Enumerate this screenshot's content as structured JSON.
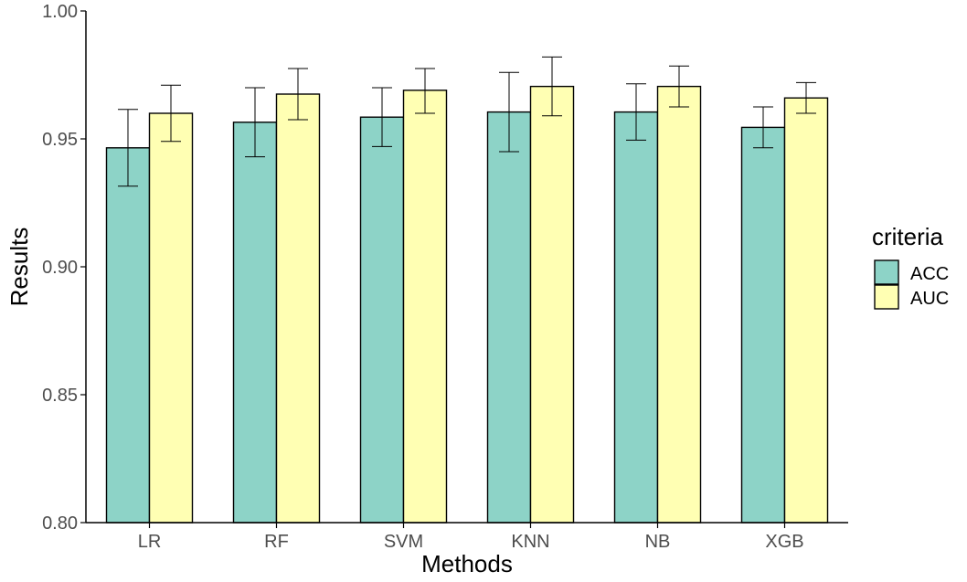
{
  "chart_data": {
    "type": "bar",
    "xlabel": "Methods",
    "ylabel": "Results",
    "ylim": [
      0.8,
      1.0
    ],
    "yticks": [
      "0.80",
      "0.85",
      "0.90",
      "0.95",
      "1.00"
    ],
    "categories": [
      "LR",
      "RF",
      "SVM",
      "KNN",
      "NB",
      "XGB"
    ],
    "legend": {
      "title": "criteria",
      "placement": "right"
    },
    "grid": false,
    "series": [
      {
        "name": "ACC",
        "color": "#8dd3c7",
        "values": [
          0.9465,
          0.9565,
          0.9585,
          0.9605,
          0.9605,
          0.9545
        ],
        "err_low": [
          0.9315,
          0.943,
          0.947,
          0.945,
          0.9495,
          0.9465
        ],
        "err_high": [
          0.9615,
          0.97,
          0.97,
          0.976,
          0.9715,
          0.9625
        ]
      },
      {
        "name": "AUC",
        "color": "#ffffb3",
        "values": [
          0.96,
          0.9675,
          0.969,
          0.9705,
          0.9705,
          0.966
        ],
        "err_low": [
          0.949,
          0.9575,
          0.96,
          0.959,
          0.9625,
          0.96
        ],
        "err_high": [
          0.971,
          0.9775,
          0.9775,
          0.982,
          0.9785,
          0.972
        ]
      }
    ]
  }
}
